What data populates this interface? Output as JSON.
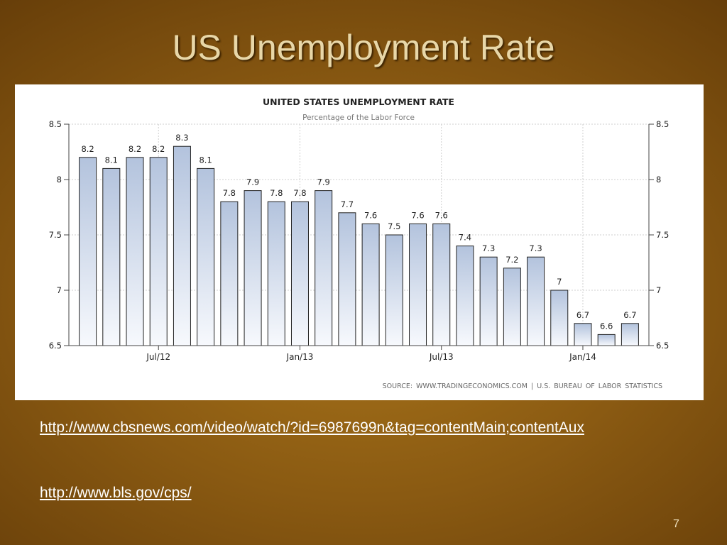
{
  "slide": {
    "title": "US Unemployment Rate",
    "page_number": "7"
  },
  "links": [
    "http://www.cbsnews.com/video/watch/?id=6987699n&tag=contentMain;contentAux",
    "http://www.bls.gov/cps/"
  ],
  "colors": {
    "bar_top": "#b3c3dd",
    "bar_bottom": "#f7f9fd",
    "bar_stroke": "#222222",
    "title_text": "#e8d7a8"
  },
  "chart_data": {
    "type": "bar",
    "title": "UNITED STATES UNEMPLOYMENT RATE",
    "subtitle": "Percentage of the Labor Force",
    "source": "SOURCE: WWW.TRADINGECONOMICS.COM | U.S. BUREAU OF LABOR STATISTICS",
    "ylim": [
      6.5,
      8.5
    ],
    "yticks": [
      "8.5",
      "8",
      "7.5",
      "7",
      "6.5"
    ],
    "ytick_values": [
      8.5,
      8,
      7.5,
      7,
      6.5
    ],
    "x_tick_labels": [
      {
        "label": "Jul/12",
        "index": 3
      },
      {
        "label": "Jan/13",
        "index": 9
      },
      {
        "label": "Jul/13",
        "index": 15
      },
      {
        "label": "Jan/14",
        "index": 21
      }
    ],
    "grid": true,
    "values": [
      8.2,
      8.1,
      8.2,
      8.2,
      8.3,
      8.1,
      7.8,
      7.9,
      7.8,
      7.8,
      7.9,
      7.7,
      7.6,
      7.5,
      7.6,
      7.6,
      7.4,
      7.3,
      7.2,
      7.3,
      7,
      6.7,
      6.6,
      6.7
    ],
    "value_labels": [
      "8.2",
      "8.1",
      "8.2",
      "8.2",
      "8.3",
      "8.1",
      "7.8",
      "7.9",
      "7.8",
      "7.8",
      "7.9",
      "7.7",
      "7.6",
      "7.5",
      "7.6",
      "7.6",
      "7.4",
      "7.3",
      "7.2",
      "7.3",
      "7",
      "6.7",
      "6.6",
      "6.7"
    ]
  }
}
